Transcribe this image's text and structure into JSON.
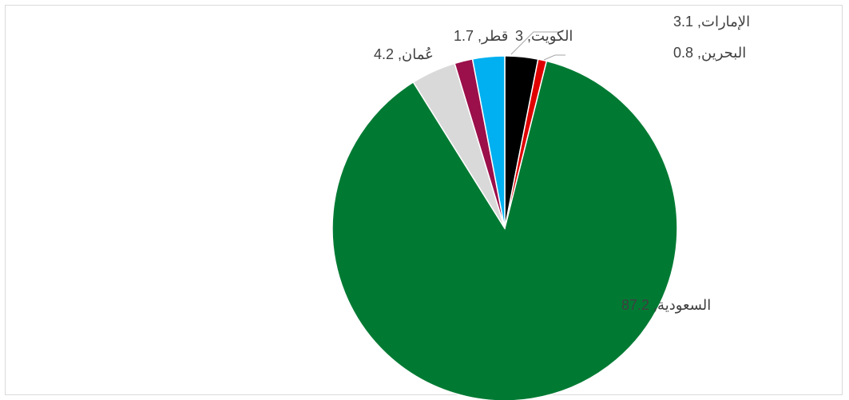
{
  "chart_data": {
    "type": "pie",
    "slices": [
      {
        "label": "الإمارات",
        "value": 3.1,
        "text": "الإمارات, 3.1",
        "color": "#000000"
      },
      {
        "label": "البحرين",
        "value": 0.8,
        "text": "البحرين, 0.8",
        "color": "#e00000"
      },
      {
        "label": "السعودية",
        "value": 87.2,
        "text": "السعودية, 87.2",
        "color": "#007a33"
      },
      {
        "label": "عُمان",
        "value": 4.2,
        "text": "عُمان, 4.2",
        "color": "#d9d9d9"
      },
      {
        "label": "قطر",
        "value": 1.7,
        "text": "قطر, 1.7",
        "color": "#9b0f4a"
      },
      {
        "label": "الكويت",
        "value": 3,
        "text": "الكويت, 3",
        "color": "#00b0f0"
      }
    ],
    "start_angle_deg": 0,
    "direction": "clockwise",
    "legend": "none",
    "title": ""
  }
}
